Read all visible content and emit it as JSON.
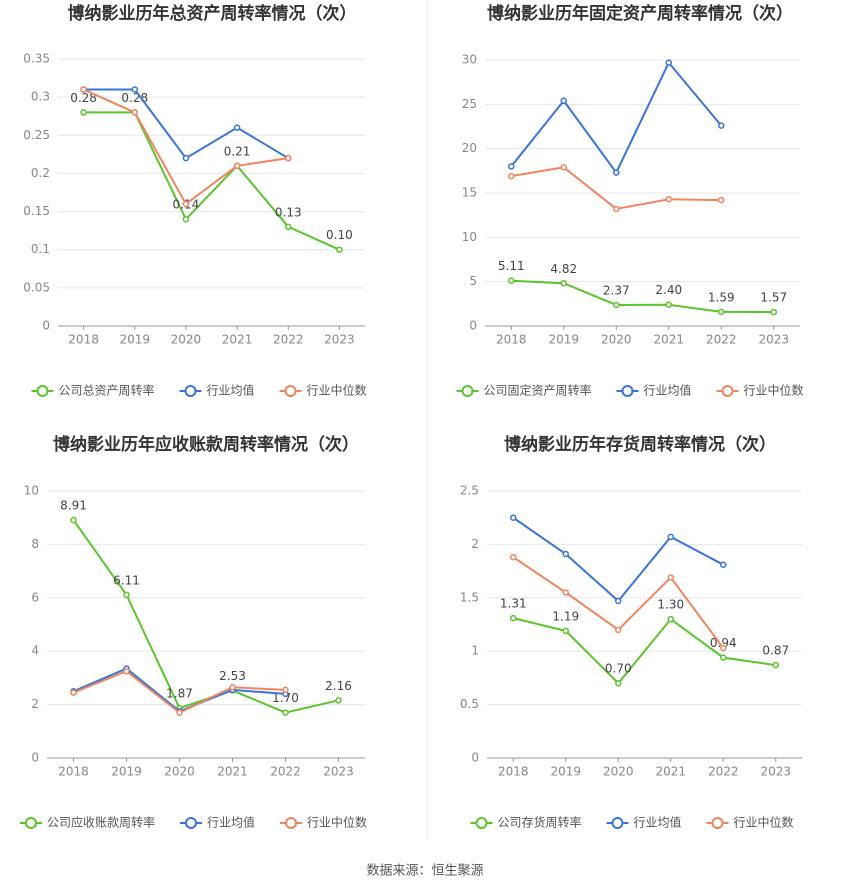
{
  "chart_data": [
    {
      "type": "line",
      "title": "博纳影业历年总资产周转率情况（次）",
      "categories": [
        "2018",
        "2019",
        "2020",
        "2021",
        "2022",
        "2023"
      ],
      "series": [
        {
          "name": "公司总资产周转率",
          "color": "#5ac52c",
          "values": [
            0.28,
            0.28,
            0.14,
            0.21,
            0.13,
            0.1
          ],
          "value_labels": [
            "0.28",
            "0.28",
            "0.14",
            "0.21",
            "0.13",
            "0.10"
          ]
        },
        {
          "name": "行业均值",
          "color": "#3a73d9",
          "values": [
            0.31,
            0.31,
            0.22,
            0.26,
            0.22,
            null
          ]
        },
        {
          "name": "行业中位数",
          "color": "#f0845e",
          "values": [
            0.31,
            0.28,
            0.16,
            0.21,
            0.22,
            null
          ]
        }
      ],
      "ylim": [
        0,
        0.35
      ],
      "yticks": [
        0,
        0.05,
        0.1,
        0.15,
        0.2,
        0.25,
        0.3,
        0.35
      ],
      "grid": true
    },
    {
      "type": "line",
      "title": "博纳影业历年固定资产周转率情况（次）",
      "categories": [
        "2018",
        "2019",
        "2020",
        "2021",
        "2022",
        "2023"
      ],
      "series": [
        {
          "name": "公司固定资产周转率",
          "color": "#5ac52c",
          "values": [
            5.11,
            4.82,
            2.37,
            2.4,
            1.59,
            1.57
          ],
          "value_labels": [
            "5.11",
            "4.82",
            "2.37",
            "2.40",
            "1.59",
            "1.57"
          ]
        },
        {
          "name": "行业均值",
          "color": "#3a73d9",
          "values": [
            18,
            25.4,
            17.3,
            29.7,
            22.6,
            null
          ]
        },
        {
          "name": "行业中位数",
          "color": "#f0845e",
          "values": [
            16.9,
            17.9,
            13.2,
            14.3,
            14.2,
            null
          ]
        }
      ],
      "ylim": [
        0,
        30
      ],
      "yticks": [
        0,
        5,
        10,
        15,
        20,
        25,
        30
      ],
      "grid": true
    },
    {
      "type": "line",
      "title": "博纳影业历年应收账款周转率情况（次）",
      "categories": [
        "2018",
        "2019",
        "2020",
        "2021",
        "2022",
        "2023"
      ],
      "series": [
        {
          "name": "公司应收账款周转率",
          "color": "#5ac52c",
          "values": [
            8.91,
            6.11,
            1.87,
            2.53,
            1.7,
            2.16
          ],
          "value_labels": [
            "8.91",
            "6.11",
            "1.87",
            "2.53",
            "1.70",
            "2.16"
          ]
        },
        {
          "name": "行业均值",
          "color": "#3a73d9",
          "values": [
            2.5,
            3.35,
            1.75,
            2.55,
            2.4,
            null
          ]
        },
        {
          "name": "行业中位数",
          "color": "#f0845e",
          "values": [
            2.45,
            3.25,
            1.7,
            2.65,
            2.55,
            null
          ]
        }
      ],
      "ylim": [
        0,
        10
      ],
      "yticks": [
        0,
        2,
        4,
        6,
        8,
        10
      ],
      "grid": true
    },
    {
      "type": "line",
      "title": "博纳影业历年存货周转率情况（次）",
      "categories": [
        "2018",
        "2019",
        "2020",
        "2021",
        "2022",
        "2023"
      ],
      "series": [
        {
          "name": "公司存货周转率",
          "color": "#5ac52c",
          "values": [
            1.31,
            1.19,
            0.7,
            1.3,
            0.94,
            0.87
          ],
          "value_labels": [
            "1.31",
            "1.19",
            "0.70",
            "1.30",
            "0.94",
            "0.87"
          ]
        },
        {
          "name": "行业均值",
          "color": "#3a73d9",
          "values": [
            2.25,
            1.91,
            1.47,
            2.07,
            1.81,
            null
          ]
        },
        {
          "name": "行业中位数",
          "color": "#f0845e",
          "values": [
            1.88,
            1.55,
            1.2,
            1.69,
            1.03,
            null
          ]
        }
      ],
      "ylim": [
        0,
        2.5
      ],
      "yticks": [
        0,
        0.5,
        1,
        1.5,
        2,
        2.5
      ],
      "grid": true
    }
  ],
  "source": "数据来源：恒生聚源"
}
